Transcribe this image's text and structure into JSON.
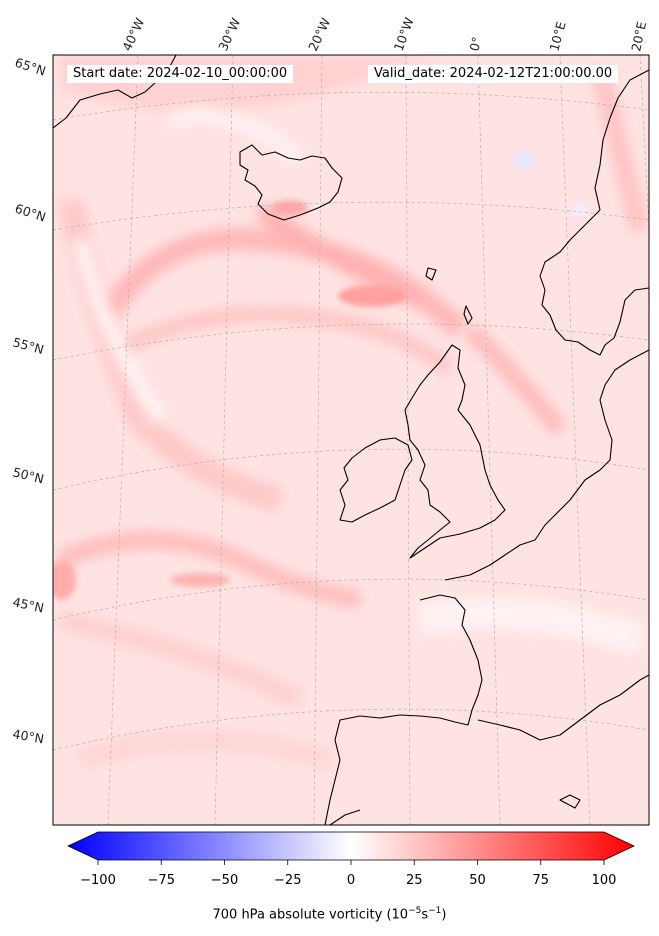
{
  "map": {
    "start_date": "Start date: 2024-02-10_00:00:00",
    "valid_date": "Valid_date: 2024-02-12T21:00:00.00",
    "lon_labels": [
      "40°W",
      "30°W",
      "20°W",
      "10°W",
      "0°",
      "10°E",
      "20°E"
    ],
    "lat_labels": [
      "65°N",
      "60°N",
      "55°N",
      "50°N",
      "45°N",
      "40°N"
    ],
    "land_color": "none",
    "coast_color": "#000000"
  },
  "colorbar": {
    "ticks": [
      "−100",
      "−75",
      "−50",
      "−25",
      "0",
      "25",
      "50",
      "75",
      "100"
    ],
    "min": -100,
    "max": 100,
    "label_main": "700 hPa absolute vorticity (10",
    "label_exp1": "−5",
    "label_mid": "s",
    "label_exp2": "−1",
    "label_end": ")",
    "colors": {
      "negative": "#0000ff",
      "zero": "#ffffff",
      "positive": "#ff0000"
    }
  }
}
